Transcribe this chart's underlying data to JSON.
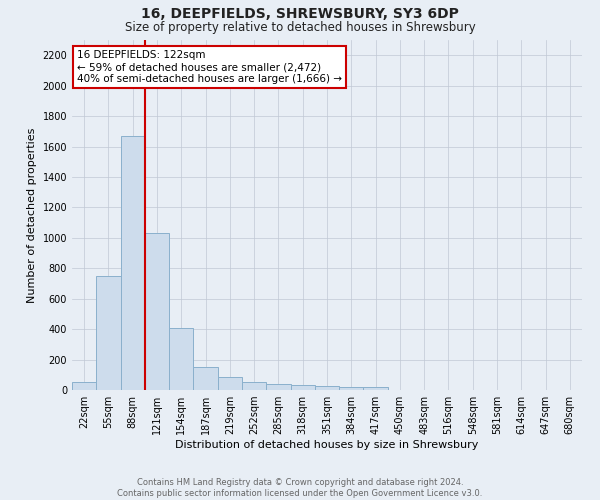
{
  "title": "16, DEEPFIELDS, SHREWSBURY, SY3 6DP",
  "subtitle": "Size of property relative to detached houses in Shrewsbury",
  "xlabel": "Distribution of detached houses by size in Shrewsbury",
  "ylabel": "Number of detached properties",
  "bar_labels": [
    "22sqm",
    "55sqm",
    "88sqm",
    "121sqm",
    "154sqm",
    "187sqm",
    "219sqm",
    "252sqm",
    "285sqm",
    "318sqm",
    "351sqm",
    "384sqm",
    "417sqm",
    "450sqm",
    "483sqm",
    "516sqm",
    "548sqm",
    "581sqm",
    "614sqm",
    "647sqm",
    "680sqm"
  ],
  "bar_values": [
    50,
    748,
    1672,
    1035,
    405,
    150,
    85,
    50,
    40,
    30,
    25,
    20,
    20,
    0,
    0,
    0,
    0,
    0,
    0,
    0,
    0
  ],
  "bar_color": "#cddcec",
  "bar_edgecolor": "#8ab0cc",
  "ylim": [
    0,
    2300
  ],
  "yticks": [
    0,
    200,
    400,
    600,
    800,
    1000,
    1200,
    1400,
    1600,
    1800,
    2000,
    2200
  ],
  "property_line_color": "#cc0000",
  "annotation_text": "16 DEEPFIELDS: 122sqm\n← 59% of detached houses are smaller (2,472)\n40% of semi-detached houses are larger (1,666) →",
  "annotation_box_facecolor": "#ffffff",
  "annotation_box_edgecolor": "#cc0000",
  "footer_text": "Contains HM Land Registry data © Crown copyright and database right 2024.\nContains public sector information licensed under the Open Government Licence v3.0.",
  "bg_color": "#e8eef5",
  "title_fontsize": 10,
  "subtitle_fontsize": 8.5,
  "ylabel_fontsize": 8,
  "xlabel_fontsize": 8,
  "tick_fontsize": 7,
  "footer_fontsize": 6,
  "annotation_fontsize": 7.5
}
